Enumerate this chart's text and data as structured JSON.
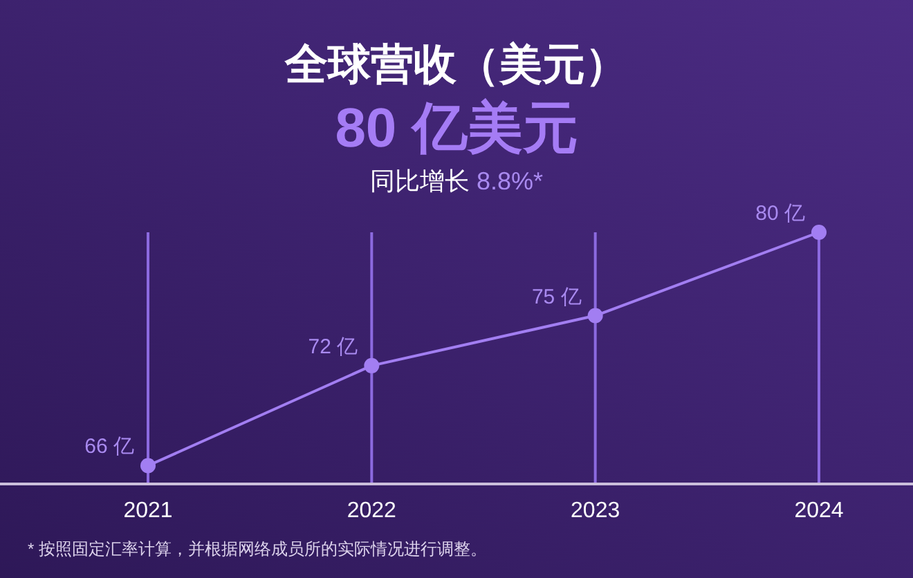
{
  "chart_data": {
    "type": "line",
    "title": "全球营收（美元）",
    "subtitle": "80 亿美元",
    "categories": [
      "2021",
      "2022",
      "2023",
      "2024"
    ],
    "series": [
      {
        "color": "#a27ef2",
        "values": [
          66,
          72,
          75,
          80
        ],
        "value_labels": [
          "66 亿",
          "72 亿",
          "75 亿",
          "80 亿"
        ]
      }
    ],
    "ylim": [
      64.9,
      80
    ],
    "grid": "x",
    "marker": "circle",
    "line_style": "solid",
    "tick_labels": "x",
    "annotations": [
      "同比增长 8.8%*",
      "* 按照固定汇率计算，并根据网络成员所的实际情况进行调整。"
    ]
  }
}
